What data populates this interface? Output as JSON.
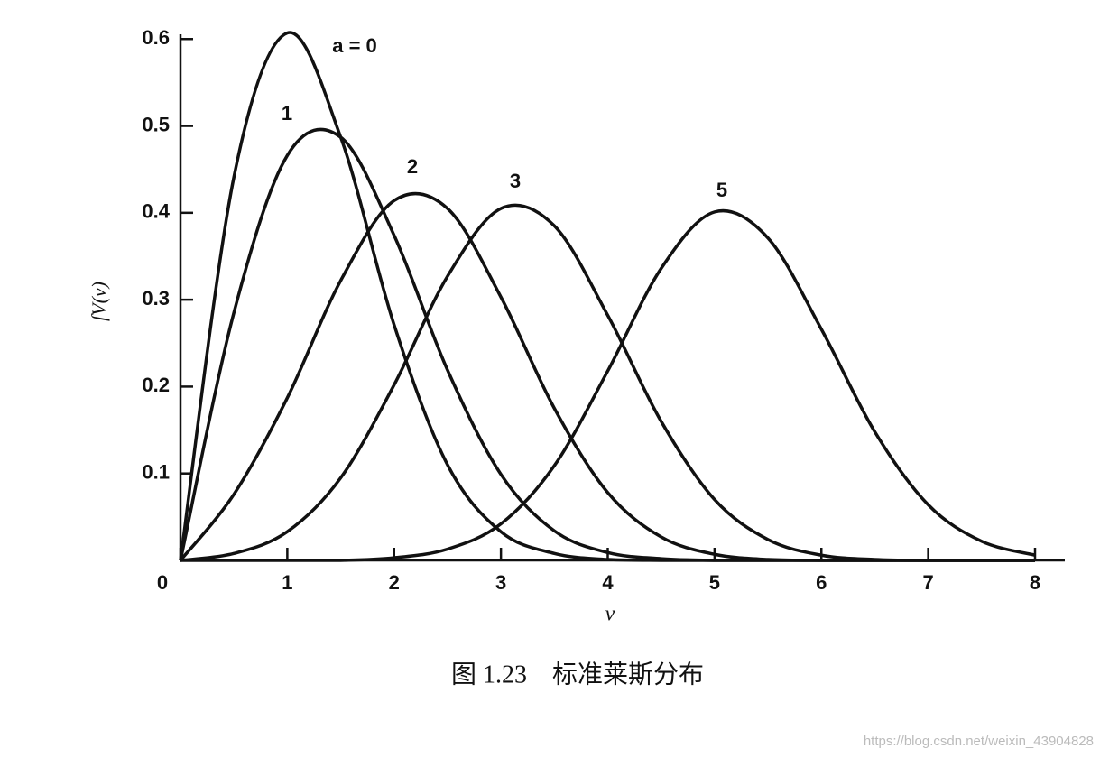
{
  "chart_data": {
    "type": "line",
    "x_label": "v",
    "y_label": "fV(v)",
    "caption": "图 1.23　标准莱斯分布",
    "watermark": "https://blog.csdn.net/weixin_43904828",
    "x": [
      0,
      0.5,
      1,
      1.5,
      2,
      2.5,
      3,
      3.5,
      4,
      4.5,
      5,
      5.5,
      6,
      6.5,
      7,
      7.5,
      8
    ],
    "series": [
      {
        "name": "a = 0",
        "color": "#111111",
        "values": [
          0,
          0.441,
          0.607,
          0.487,
          0.271,
          0.11,
          0.033,
          0.008,
          0.001,
          0,
          0,
          0,
          0,
          0,
          0,
          0,
          0
        ]
      },
      {
        "name": "1",
        "color": "#111111",
        "values": [
          0,
          0.285,
          0.466,
          0.487,
          0.374,
          0.219,
          0.099,
          0.034,
          0.009,
          0.002,
          0,
          0,
          0,
          0,
          0,
          0,
          0
        ]
      },
      {
        "name": "2",
        "color": "#111111",
        "values": [
          0,
          0.076,
          0.187,
          0.322,
          0.414,
          0.405,
          0.303,
          0.175,
          0.078,
          0.027,
          0.007,
          0.001,
          0,
          0,
          0,
          0,
          0
        ]
      },
      {
        "name": "3",
        "color": "#111111",
        "values": [
          0,
          0.008,
          0.033,
          0.095,
          0.202,
          0.327,
          0.405,
          0.385,
          0.282,
          0.16,
          0.07,
          0.024,
          0.006,
          0.001,
          0,
          0,
          0
        ]
      },
      {
        "name": "5",
        "color": "#111111",
        "values": [
          0,
          0,
          0,
          0,
          0.003,
          0.013,
          0.042,
          0.109,
          0.218,
          0.336,
          0.401,
          0.371,
          0.266,
          0.148,
          0.064,
          0.022,
          0.006
        ]
      }
    ],
    "xlim": [
      0,
      8
    ],
    "ylim": [
      0,
      0.62
    ],
    "xticks": [
      0,
      1,
      2,
      3,
      4,
      5,
      6,
      7,
      8
    ],
    "yticks": [
      0.1,
      0.2,
      0.3,
      0.4,
      0.5,
      0.6
    ],
    "grid": false
  }
}
